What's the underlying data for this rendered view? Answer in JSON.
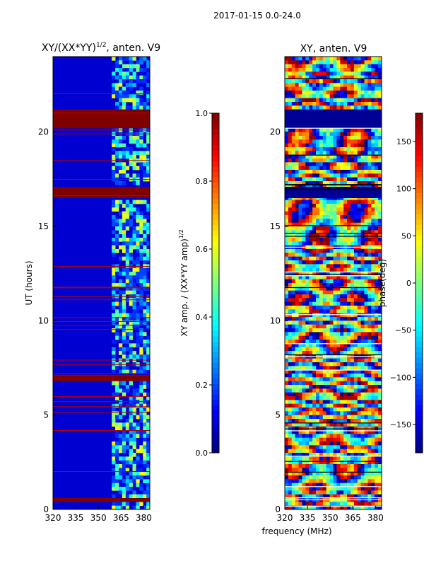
{
  "suptitle": "2017-01-15 0.0-24.0",
  "chart_data": [
    {
      "type": "heatmap",
      "title": "XY/(XX*YY)^1/2, anten. V9",
      "title_main": "XY/(XX*YY)",
      "title_exp": "1/2",
      "title_tail": ", anten. V9",
      "xlabel": "",
      "ylabel": "UT (hours)",
      "xlim": [
        320,
        384
      ],
      "ylim": [
        0,
        24
      ],
      "x_ticks": [
        320,
        335,
        350,
        365,
        380
      ],
      "y_ticks": [
        0,
        5,
        10,
        15,
        20
      ],
      "colorbar": {
        "label": "XY amp. / (XX*YY amp)^1/2",
        "label_main": "XY amp. / (XX*YY amp)",
        "label_exp": "1/2",
        "range": [
          0.0,
          1.0
        ],
        "ticks": [
          "0.0",
          "0.2",
          "0.4",
          "0.6",
          "0.8",
          "1.0"
        ]
      },
      "saturated_bands_hours": [
        [
          20.2,
          21.2
        ],
        [
          16.5,
          17.1
        ],
        [
          6.8,
          7.1
        ],
        [
          0.4,
          0.6
        ]
      ],
      "strong_signal_freq_range_mhz": [
        359,
        384
      ]
    },
    {
      "type": "heatmap",
      "title": "XY, anten. V9",
      "xlabel": "frequency (MHz)",
      "ylabel": "",
      "xlim": [
        320,
        384
      ],
      "ylim": [
        0,
        24
      ],
      "x_ticks": [
        320,
        335,
        350,
        365,
        380
      ],
      "y_ticks": [
        0,
        5,
        10,
        15,
        20
      ],
      "colorbar": {
        "label": "phase(deg)",
        "range": [
          -180,
          180
        ],
        "ticks": [
          "−150",
          "−100",
          "−50",
          "0",
          "50",
          "100",
          "150"
        ]
      },
      "saturated_bands_hours": [
        [
          20.2,
          21.2
        ],
        [
          16.5,
          17.1
        ]
      ]
    }
  ]
}
